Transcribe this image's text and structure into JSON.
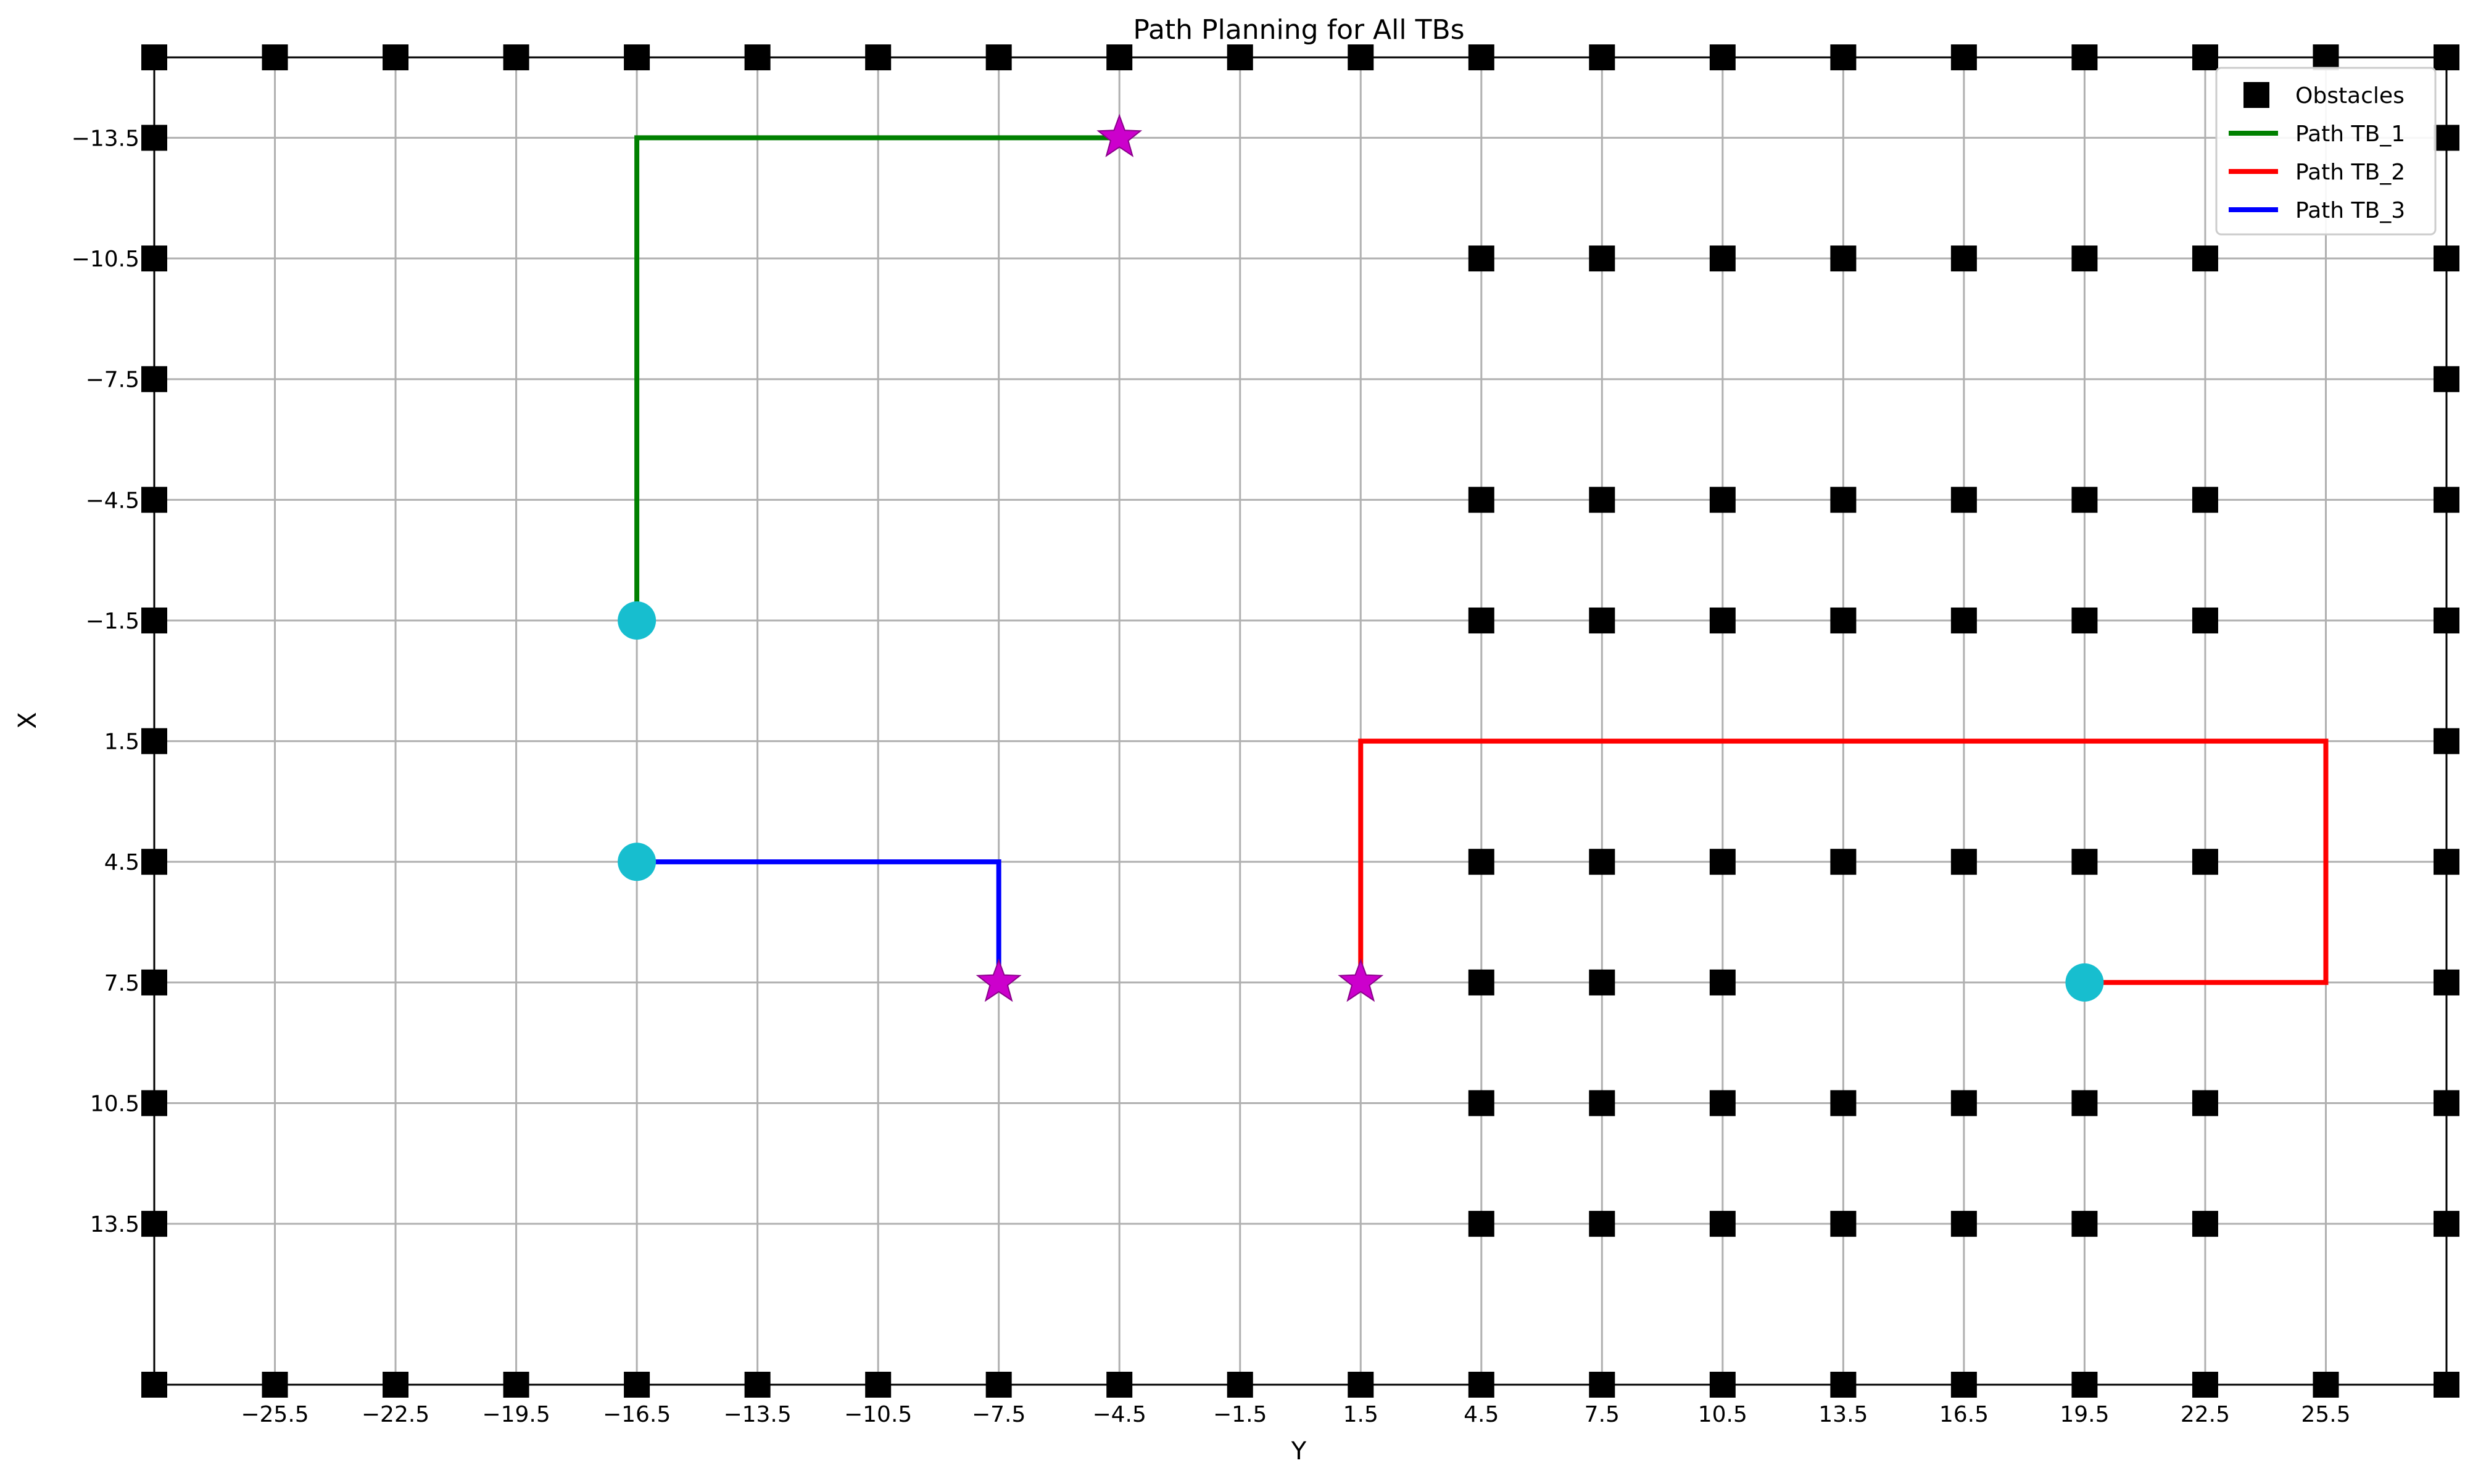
{
  "chart_data": {
    "type": "line",
    "title": "Path Planning for All TBs",
    "xlabel": "Y",
    "ylabel": "X",
    "xlim": [
      -28.5,
      28.5
    ],
    "ylim": [
      17.5,
      -15.5
    ],
    "y_inverted": true,
    "grid": true,
    "legend_position": "top-right",
    "x_ticks": [
      -25.5,
      -22.5,
      -19.5,
      -16.5,
      -13.5,
      -10.5,
      -7.5,
      -4.5,
      -1.5,
      1.5,
      4.5,
      7.5,
      10.5,
      13.5,
      16.5,
      19.5,
      22.5,
      25.5
    ],
    "x_tick_labels": [
      "−25.5",
      "−22.5",
      "−19.5",
      "−16.5",
      "−13.5",
      "−10.5",
      "−7.5",
      "−4.5",
      "−1.5",
      "1.5",
      "4.5",
      "7.5",
      "10.5",
      "13.5",
      "16.5",
      "19.5",
      "22.5",
      "25.5"
    ],
    "y_ticks": [
      -13.5,
      -10.5,
      -7.5,
      -4.5,
      -1.5,
      1.5,
      4.5,
      7.5,
      10.5,
      13.5
    ],
    "y_tick_labels": [
      "−13.5",
      "−10.5",
      "−7.5",
      "−4.5",
      "−1.5",
      "1.5",
      "4.5",
      "7.5",
      "10.5",
      "13.5"
    ],
    "obstacles": {
      "name": "Obstacles",
      "color": "#000000",
      "marker": "square",
      "border_x": [
        -28.5,
        -25.5,
        -22.5,
        -19.5,
        -16.5,
        -13.5,
        -10.5,
        -7.5,
        -4.5,
        -1.5,
        1.5,
        4.5,
        7.5,
        10.5,
        13.5,
        16.5,
        19.5,
        22.5,
        25.5,
        28.5
      ],
      "border_rows": [
        -15.5,
        17.5
      ],
      "border_y": [
        -13.5,
        -10.5,
        -7.5,
        -4.5,
        -1.5,
        1.5,
        4.5,
        7.5,
        10.5,
        13.5
      ],
      "border_cols": [
        -28.5,
        28.5
      ],
      "block_x": [
        4.5,
        7.5,
        10.5,
        13.5,
        16.5,
        19.5,
        22.5
      ],
      "block_rows": [
        -10.5,
        -4.5,
        -1.5,
        4.5,
        10.5,
        13.5
      ],
      "partial_row_y": 7.5,
      "partial_row_x": [
        4.5,
        7.5,
        10.5
      ]
    },
    "series": [
      {
        "name": "Path TB_1",
        "color": "#008000",
        "points": [
          [
            -16.5,
            -1.5
          ],
          [
            -16.5,
            -13.5
          ],
          [
            -4.5,
            -13.5
          ]
        ]
      },
      {
        "name": "Path TB_2",
        "color": "#ff0000",
        "points": [
          [
            19.5,
            7.5
          ],
          [
            25.5,
            7.5
          ],
          [
            25.5,
            1.5
          ],
          [
            1.5,
            1.5
          ],
          [
            1.5,
            7.5
          ]
        ]
      },
      {
        "name": "Path TB_3",
        "color": "#0000ff",
        "points": [
          [
            -16.5,
            4.5
          ],
          [
            -7.5,
            4.5
          ],
          [
            -7.5,
            7.5
          ]
        ]
      }
    ],
    "start_marker_color": "#17becf",
    "goal_marker_color": "#cc00cc"
  }
}
